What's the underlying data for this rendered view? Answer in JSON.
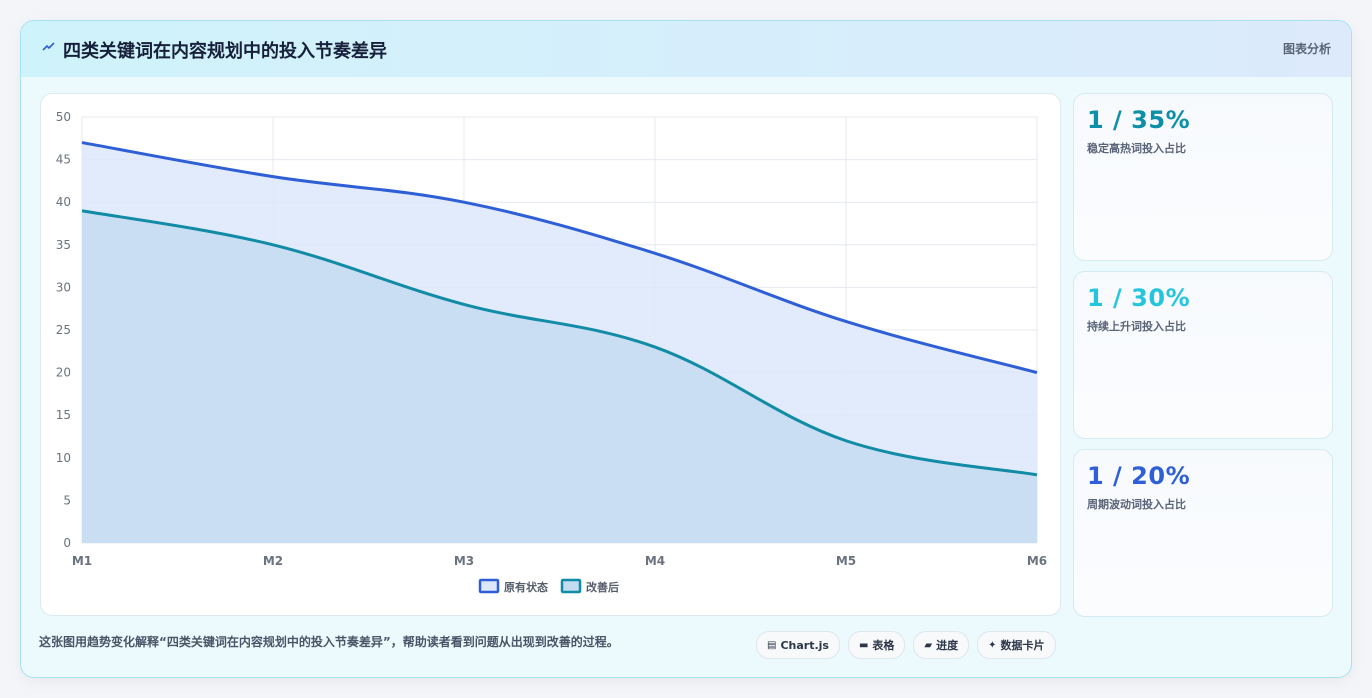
{
  "header": {
    "title": "四类关键词在内容规划中的投入节奏差异",
    "tag": "图表分析"
  },
  "cards": [
    {
      "value": "1 / 35%",
      "label": "稳定高热词投入占比",
      "color": "#0e8fa8"
    },
    {
      "value": "1 / 30%",
      "label": "持续上升词投入占比",
      "color": "#25c6dd"
    },
    {
      "value": "1 / 20%",
      "label": "周期波动词投入占比",
      "color": "#2f5fd6"
    }
  ],
  "footer": {
    "caption": "这张图用趋势变化解释“四类关键词在内容规划中的投入节奏差异”，帮助读者看到问题从出现到改善的过程。",
    "chips": [
      {
        "icon": "▤",
        "icon_name": "chart-icon",
        "label": "Chart.js"
      },
      {
        "icon": "▬",
        "icon_name": "table-icon",
        "label": "表格"
      },
      {
        "icon": "▰",
        "icon_name": "progress-icon",
        "label": "进度"
      },
      {
        "icon": "✦",
        "icon_name": "sparkle-icon",
        "label": "数据卡片"
      }
    ]
  },
  "chart_data": {
    "type": "area",
    "categories": [
      "M1",
      "M2",
      "M3",
      "M4",
      "M5",
      "M6"
    ],
    "series": [
      {
        "name": "原有状态",
        "values": [
          47,
          43,
          40,
          34,
          26,
          20
        ],
        "color": "#2f5fd6",
        "fill": "#dde7fa"
      },
      {
        "name": "改善后",
        "values": [
          39,
          35,
          28,
          23,
          12,
          8
        ],
        "color": "#118ba6",
        "fill": "#c4dcf1"
      }
    ],
    "ylim": [
      0,
      50
    ],
    "yticks": [
      0,
      5,
      10,
      15,
      20,
      25,
      30,
      35,
      40,
      45,
      50
    ],
    "grid": true,
    "legend": "bottom"
  }
}
